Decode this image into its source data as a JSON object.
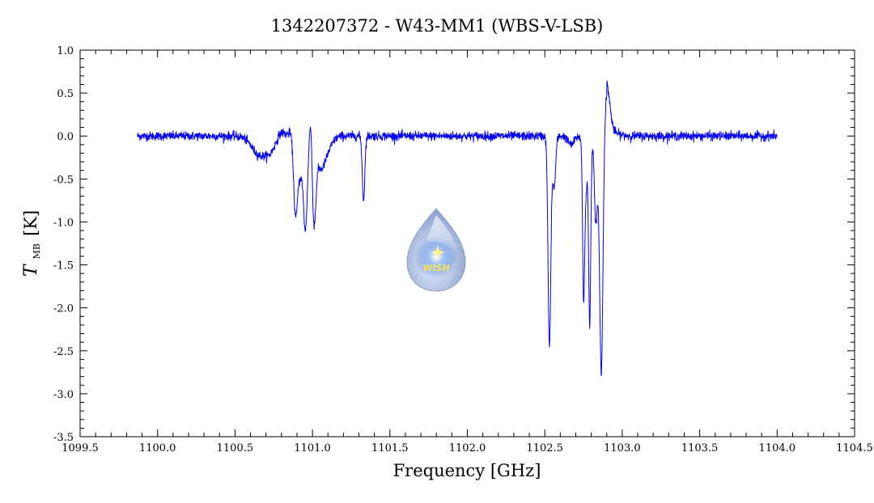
{
  "chart_data": {
    "type": "line",
    "title": "1342207372 - W43-MM1 (WBS-V-LSB)",
    "xlabel": "Frequency [GHz]",
    "ylabel": {
      "symbol": "T",
      "subscript": "MB",
      "unit": "[K]"
    },
    "xlim": [
      1099.5,
      1104.5
    ],
    "ylim": [
      -3.5,
      1.0
    ],
    "xticks": [
      1099.5,
      1100.0,
      1100.5,
      1101.0,
      1101.5,
      1102.0,
      1102.5,
      1103.0,
      1103.5,
      1104.0,
      1104.5
    ],
    "xtick_labels": [
      "1099.5",
      "1100.0",
      "1100.5",
      "1101.0",
      "1101.5",
      "1102.0",
      "1102.5",
      "1103.0",
      "1103.5",
      "1104.0",
      "1104.5"
    ],
    "yticks": [
      -3.5,
      -3.0,
      -2.5,
      -2.0,
      -1.5,
      -1.0,
      -0.5,
      0.0,
      0.5,
      1.0
    ],
    "ytick_labels": [
      "-3.5",
      "-3.0",
      "-2.5",
      "-2.0",
      "-1.5",
      "-1.0",
      "-0.5",
      "0.0",
      "0.5",
      "1.0"
    ],
    "grid": false,
    "series": [
      {
        "color": "#0000ee",
        "x_range": [
          1099.87,
          1104.0
        ],
        "noise_rms": 0.025,
        "features": [
          {
            "center": 1100.66,
            "depth": -0.22,
            "width": 0.05
          },
          {
            "center": 1100.73,
            "depth": -0.12,
            "width": 0.03
          },
          {
            "center": 1100.8,
            "depth": 0.05,
            "width": 0.02
          },
          {
            "center": 1100.86,
            "depth": 0.05,
            "width": 0.015
          },
          {
            "center": 1100.89,
            "depth": -0.8,
            "width": 0.012
          },
          {
            "center": 1100.92,
            "depth": -0.45,
            "width": 0.02
          },
          {
            "center": 1100.955,
            "depth": -1.0,
            "width": 0.012
          },
          {
            "center": 1100.99,
            "depth": 0.33,
            "width": 0.008
          },
          {
            "center": 1101.01,
            "depth": -0.9,
            "width": 0.012
          },
          {
            "center": 1101.05,
            "depth": -0.35,
            "width": 0.03
          },
          {
            "center": 1101.1,
            "depth": -0.12,
            "width": 0.03
          },
          {
            "center": 1101.33,
            "depth": -0.75,
            "width": 0.008
          },
          {
            "center": 1102.53,
            "depth": -2.45,
            "width": 0.009
          },
          {
            "center": 1102.56,
            "depth": -0.6,
            "width": 0.01
          },
          {
            "center": 1102.67,
            "depth": -0.1,
            "width": 0.02
          },
          {
            "center": 1102.75,
            "depth": -1.35,
            "width": 0.006
          },
          {
            "center": 1102.76,
            "depth": -0.8,
            "width": 0.012
          },
          {
            "center": 1102.79,
            "depth": -2.15,
            "width": 0.007
          },
          {
            "center": 1102.83,
            "depth": -1.0,
            "width": 0.01
          },
          {
            "center": 1102.865,
            "depth": -2.85,
            "width": 0.011
          },
          {
            "center": 1102.9,
            "depth": 0.47,
            "width": 0.02
          }
        ]
      }
    ]
  },
  "watermark": {
    "label": "WISH",
    "colors": {
      "drop": "#9fb2d8",
      "core": "#3f78d8",
      "text": "#f7e65a"
    }
  }
}
